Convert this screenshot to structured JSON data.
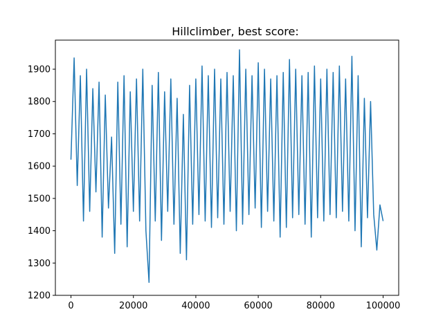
{
  "chart_data": {
    "type": "line",
    "title": "Hillclimber, best score:",
    "xlabel": "",
    "ylabel": "",
    "xlim": [
      -5000,
      105000
    ],
    "ylim": [
      1200,
      1990
    ],
    "x_ticks": [
      0,
      20000,
      40000,
      60000,
      80000,
      100000
    ],
    "x_tick_labels": [
      "0",
      "20000",
      "40000",
      "60000",
      "80000",
      "100000"
    ],
    "y_ticks": [
      1200,
      1300,
      1400,
      1500,
      1600,
      1700,
      1800,
      1900
    ],
    "y_tick_labels": [
      "1200",
      "1300",
      "1400",
      "1500",
      "1600",
      "1700",
      "1800",
      "1900"
    ],
    "grid": false,
    "legend": "none",
    "series": [
      {
        "color": "#1f77b4",
        "x": [
          0,
          1000,
          2000,
          3000,
          4000,
          5000,
          6000,
          7000,
          8000,
          9000,
          10000,
          11000,
          12000,
          13000,
          14000,
          15000,
          16000,
          17000,
          18000,
          19000,
          20000,
          21000,
          22000,
          23000,
          24000,
          25000,
          26000,
          27000,
          28000,
          29000,
          30000,
          31000,
          32000,
          33000,
          34000,
          35000,
          36000,
          37000,
          38000,
          39000,
          40000,
          41000,
          42000,
          43000,
          44000,
          45000,
          46000,
          47000,
          48000,
          49000,
          50000,
          51000,
          52000,
          53000,
          54000,
          55000,
          56000,
          57000,
          58000,
          59000,
          60000,
          61000,
          62000,
          63000,
          64000,
          65000,
          66000,
          67000,
          68000,
          69000,
          70000,
          71000,
          72000,
          73000,
          74000,
          75000,
          76000,
          77000,
          78000,
          79000,
          80000,
          81000,
          82000,
          83000,
          84000,
          85000,
          86000,
          87000,
          88000,
          89000,
          90000,
          91000,
          92000,
          93000,
          94000,
          95000,
          96000,
          97000,
          98000,
          99000,
          100000
        ],
        "y": [
          1620,
          1935,
          1540,
          1880,
          1430,
          1900,
          1460,
          1840,
          1520,
          1860,
          1380,
          1820,
          1470,
          1690,
          1330,
          1860,
          1420,
          1880,
          1350,
          1830,
          1460,
          1870,
          1430,
          1900,
          1400,
          1240,
          1850,
          1430,
          1890,
          1370,
          1830,
          1460,
          1870,
          1420,
          1810,
          1330,
          1760,
          1310,
          1850,
          1420,
          1870,
          1450,
          1910,
          1430,
          1880,
          1410,
          1900,
          1440,
          1870,
          1420,
          1890,
          1460,
          1880,
          1400,
          1960,
          1420,
          1900,
          1450,
          1880,
          1470,
          1920,
          1410,
          1900,
          1460,
          1870,
          1430,
          1880,
          1380,
          1890,
          1410,
          1930,
          1440,
          1900,
          1450,
          1880,
          1420,
          1890,
          1380,
          1910,
          1440,
          1870,
          1430,
          1900,
          1450,
          1890,
          1440,
          1910,
          1460,
          1870,
          1430,
          1940,
          1400,
          1880,
          1350,
          1810,
          1440,
          1800,
          1450,
          1340,
          1480,
          1430
        ]
      }
    ]
  }
}
